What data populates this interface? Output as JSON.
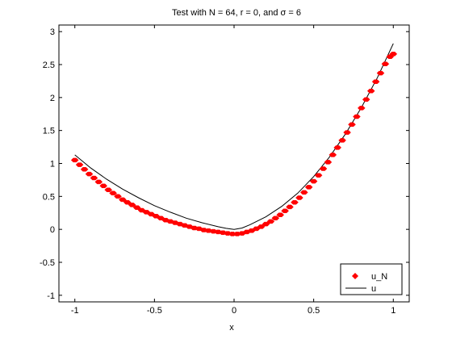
{
  "chart_data": {
    "type": "line",
    "title": "Test with N = 64, r = 0, and σ = 6",
    "xlabel": "x",
    "ylabel": "",
    "xlim": [
      -1.1,
      1.1
    ],
    "ylim": [
      -1.1,
      3.1
    ],
    "xticks": [
      -1,
      -0.5,
      0,
      0.5,
      1
    ],
    "xtick_labels": [
      "-1",
      "-0.5",
      "0",
      "0.5",
      "1"
    ],
    "yticks": [
      -1,
      -0.5,
      0,
      0.5,
      1,
      1.5,
      2,
      2.5,
      3
    ],
    "ytick_labels": [
      "-1",
      "-0.5",
      "0",
      "0.5",
      "1",
      "1.5",
      "2",
      "2.5",
      "3"
    ],
    "grid": false,
    "legend_position": "bottom-right",
    "series": [
      {
        "name": "u_N",
        "style": "markers",
        "color": "#ff0000",
        "x": [
          -1.0,
          -0.97,
          -0.94,
          -0.91,
          -0.88,
          -0.85,
          -0.82,
          -0.79,
          -0.76,
          -0.73,
          -0.7,
          -0.67,
          -0.64,
          -0.61,
          -0.58,
          -0.55,
          -0.52,
          -0.49,
          -0.46,
          -0.43,
          -0.4,
          -0.37,
          -0.34,
          -0.31,
          -0.28,
          -0.25,
          -0.22,
          -0.19,
          -0.16,
          -0.13,
          -0.1,
          -0.07,
          -0.04,
          -0.01,
          0.02,
          0.05,
          0.08,
          0.11,
          0.14,
          0.17,
          0.2,
          0.23,
          0.26,
          0.29,
          0.32,
          0.35,
          0.38,
          0.41,
          0.44,
          0.47,
          0.5,
          0.53,
          0.56,
          0.59,
          0.62,
          0.65,
          0.68,
          0.71,
          0.74,
          0.77,
          0.8,
          0.83,
          0.86,
          0.89,
          0.92,
          0.95,
          0.98,
          1.0
        ],
        "y": [
          1.05,
          0.98,
          0.91,
          0.84,
          0.78,
          0.72,
          0.66,
          0.6,
          0.55,
          0.5,
          0.45,
          0.41,
          0.37,
          0.33,
          0.29,
          0.26,
          0.23,
          0.2,
          0.17,
          0.14,
          0.12,
          0.1,
          0.08,
          0.06,
          0.04,
          0.02,
          0.01,
          -0.01,
          -0.02,
          -0.03,
          -0.04,
          -0.05,
          -0.06,
          -0.07,
          -0.07,
          -0.06,
          -0.04,
          -0.02,
          0.01,
          0.04,
          0.08,
          0.12,
          0.17,
          0.22,
          0.28,
          0.34,
          0.41,
          0.48,
          0.56,
          0.64,
          0.73,
          0.82,
          0.92,
          1.02,
          1.13,
          1.24,
          1.35,
          1.47,
          1.59,
          1.71,
          1.84,
          1.97,
          2.1,
          2.24,
          2.37,
          2.51,
          2.62,
          2.66
        ]
      },
      {
        "name": "u",
        "style": "line",
        "color": "#000000",
        "x": [
          -1.0,
          -0.9,
          -0.8,
          -0.7,
          -0.6,
          -0.5,
          -0.4,
          -0.3,
          -0.2,
          -0.1,
          -0.05,
          0.0,
          0.05,
          0.1,
          0.2,
          0.3,
          0.4,
          0.5,
          0.6,
          0.7,
          0.8,
          0.9,
          1.0
        ],
        "y": [
          1.13,
          0.93,
          0.76,
          0.61,
          0.48,
          0.36,
          0.26,
          0.17,
          0.1,
          0.04,
          0.015,
          0.0,
          0.02,
          0.07,
          0.19,
          0.35,
          0.55,
          0.8,
          1.1,
          1.45,
          1.85,
          2.3,
          2.82
        ]
      }
    ]
  }
}
